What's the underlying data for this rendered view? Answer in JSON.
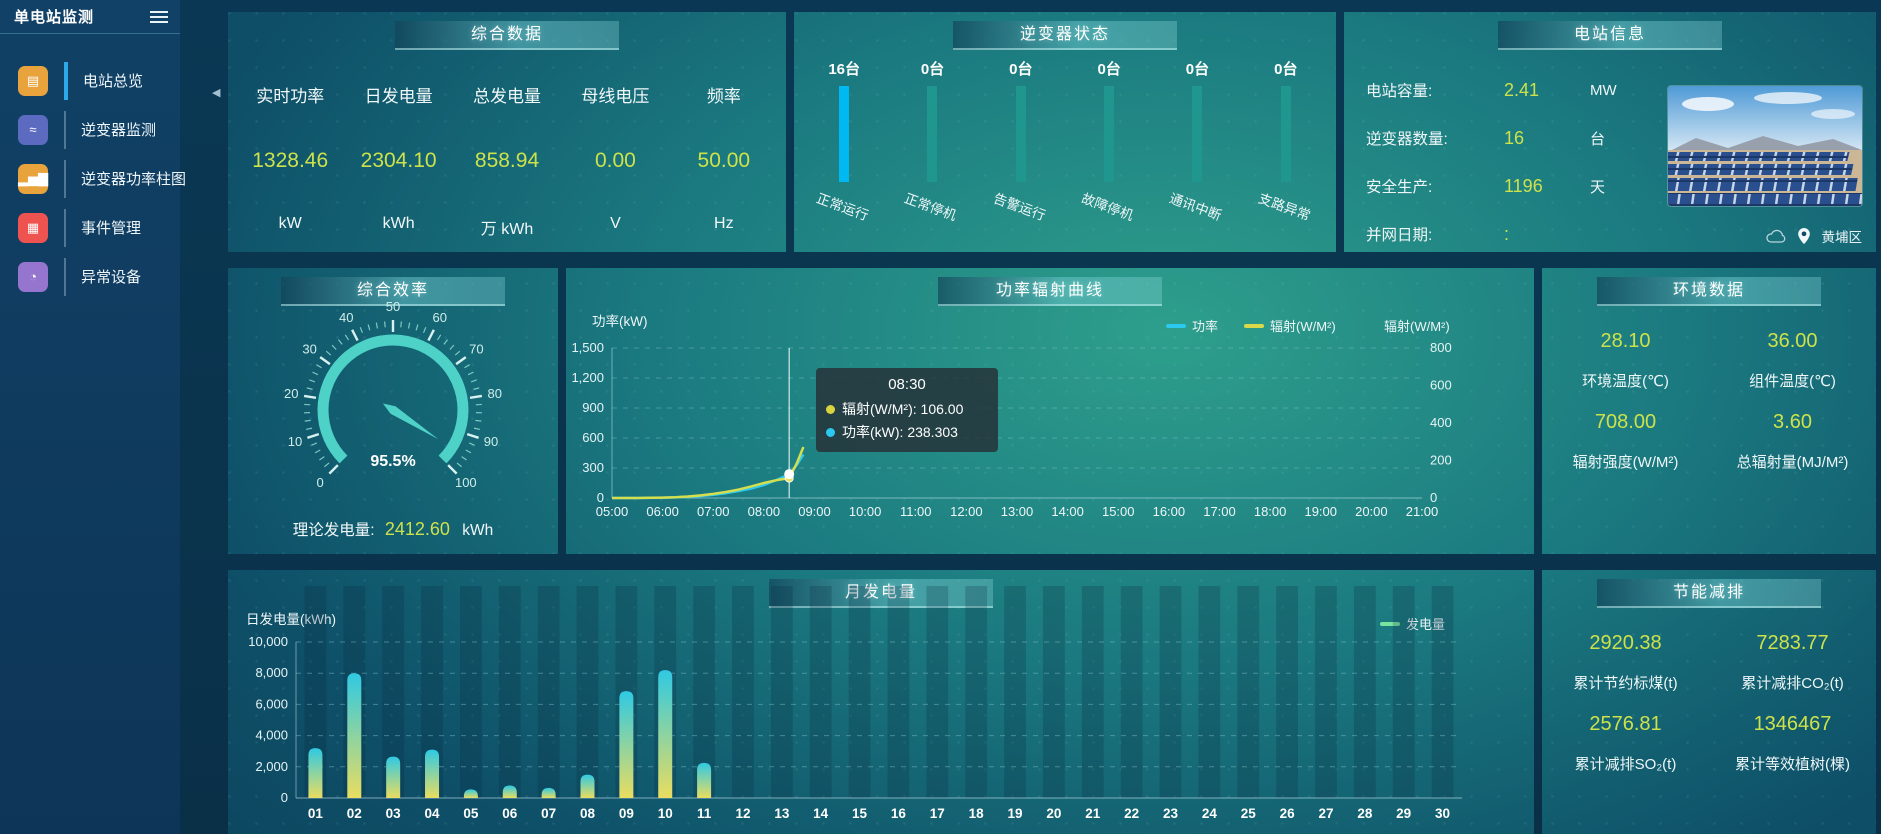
{
  "app": {
    "title": "单电站监测"
  },
  "misc": {
    "collapse_glyph": "◀"
  },
  "sidebar": {
    "items": [
      {
        "id": "station-overview",
        "label": "电站总览",
        "glyph": "▤",
        "icon_color": "#e8a33d",
        "active": true
      },
      {
        "id": "inverter-monitor",
        "label": "逆变器监测",
        "glyph": "≈",
        "icon_color": "#5c6bc0",
        "active": false
      },
      {
        "id": "inverter-power-bars",
        "label": "逆变器功率柱图",
        "glyph": "▂▅▇",
        "icon_color": "#e8a33d",
        "active": false
      },
      {
        "id": "event-management",
        "label": "事件管理",
        "glyph": "▦",
        "icon_color": "#ef5350",
        "active": false
      },
      {
        "id": "abnormal-devices",
        "label": "异常设备",
        "glyph": "◔",
        "icon_color": "#9575cd",
        "active": false
      }
    ]
  },
  "panels": {
    "summary": {
      "title": "综合数据",
      "metrics": [
        {
          "label": "实时功率",
          "value": "1328.46",
          "unit": "kW"
        },
        {
          "label": "日发电量",
          "value": "2304.10",
          "unit": "kWh"
        },
        {
          "label": "总发电量",
          "value": "858.94",
          "unit": "万 kWh"
        },
        {
          "label": "母线电压",
          "value": "0.00",
          "unit": "V"
        },
        {
          "label": "频率",
          "value": "50.00",
          "unit": "Hz"
        }
      ]
    },
    "inverter_status": {
      "title": "逆变器状态"
    },
    "station_info": {
      "title": "电站信息",
      "rows": [
        {
          "label": "电站容量:",
          "value": "2.41",
          "unit": "MW"
        },
        {
          "label": "逆变器数量:",
          "value": "16",
          "unit": "台"
        },
        {
          "label": "安全生产:",
          "value": "1196",
          "unit": "天"
        },
        {
          "label": "并网日期:",
          "value": ":",
          "unit": ""
        }
      ],
      "location": "黄埔区"
    },
    "efficiency": {
      "title": "综合效率",
      "theory_label": "理论发电量:",
      "theory_value": "2412.60",
      "theory_unit": "kWh"
    },
    "power_curve": {
      "title": "功率辐射曲线",
      "left_axis_name": "功率(kW)",
      "right_axis_name": "辐射(W/M²)",
      "legend_power": "功率",
      "legend_radiation": "辐射(W/M²)",
      "tooltip": {
        "time": "08:30",
        "radiation": "辐射(W/M²): 106.00",
        "power": "功率(kW): 238.303"
      }
    },
    "environment": {
      "title": "环境数据",
      "cells": [
        {
          "value": "28.10",
          "label": "环境温度(℃)"
        },
        {
          "value": "36.00",
          "label": "组件温度(℃)"
        },
        {
          "value": "708.00",
          "label": "辐射强度(W/M²)"
        },
        {
          "value": "3.60",
          "label": "总辐射量(MJ/M²)"
        }
      ]
    },
    "monthly": {
      "title": "月发电量",
      "axis_name": "日发电量(kWh)",
      "legend": "发电量"
    },
    "saving": {
      "title": "节能减排",
      "cells": [
        {
          "value": "2920.38",
          "label": "累计节约标煤(t)"
        },
        {
          "value": "7283.77",
          "label": "累计减排CO₂(t)"
        },
        {
          "value": "2576.81",
          "label": "累计减排SO₂(t)"
        },
        {
          "value": "1346467",
          "label": "累计等效植树(棵)"
        }
      ]
    }
  },
  "colors": {
    "accent_yellow": "#cde24a",
    "line_power": "#2cc8f0",
    "line_radiation": "#d5de4d",
    "gauge": "#4ed2c7",
    "bar_bottom": "#e9dd60",
    "bar_top": "#2fc9e3",
    "legend_generation": "#7be3a0"
  },
  "chart_data": [
    {
      "id": "power_radiation_curve",
      "type": "line",
      "title": "功率辐射曲线",
      "x_ticks": [
        "05:00",
        "06:00",
        "07:00",
        "08:00",
        "09:00",
        "10:00",
        "11:00",
        "12:00",
        "13:00",
        "14:00",
        "15:00",
        "16:00",
        "17:00",
        "18:00",
        "19:00",
        "20:00",
        "21:00"
      ],
      "x_range": [
        5,
        21
      ],
      "left_axis": {
        "label": "功率(kW)",
        "min": 0,
        "max": 1500,
        "ticks": [
          "1,500",
          "1,200",
          "900",
          "600",
          "300",
          "0"
        ]
      },
      "right_axis": {
        "label": "辐射(W/M²)",
        "min": 0,
        "max": 800,
        "ticks": [
          "800",
          "600",
          "400",
          "200",
          "0"
        ]
      },
      "series": [
        {
          "name": "功率",
          "color": "#2cc8f0",
          "axis": "left",
          "points": [
            [
              5,
              0
            ],
            [
              5.25,
              0
            ],
            [
              5.5,
              0
            ],
            [
              5.75,
              1
            ],
            [
              6,
              3
            ],
            [
              6.25,
              6
            ],
            [
              6.5,
              12
            ],
            [
              6.75,
              20
            ],
            [
              7,
              32
            ],
            [
              7.25,
              48
            ],
            [
              7.5,
              70
            ],
            [
              7.75,
              95
            ],
            [
              8,
              130
            ],
            [
              8.25,
              180
            ],
            [
              8.5,
              238.303
            ],
            [
              8.65,
              330
            ],
            [
              8.78,
              435
            ]
          ]
        },
        {
          "name": "辐射(W/M²)",
          "color": "#d5de4d",
          "axis": "right",
          "points": [
            [
              5,
              0
            ],
            [
              5.25,
              0
            ],
            [
              5.5,
              0
            ],
            [
              5.75,
              1
            ],
            [
              6,
              2
            ],
            [
              6.25,
              4
            ],
            [
              6.5,
              8
            ],
            [
              6.75,
              14
            ],
            [
              7,
              22
            ],
            [
              7.25,
              32
            ],
            [
              7.5,
              45
            ],
            [
              7.75,
              62
            ],
            [
              8,
              80
            ],
            [
              8.25,
              95
            ],
            [
              8.5,
              106
            ],
            [
              8.65,
              185
            ],
            [
              8.78,
              272
            ]
          ]
        }
      ],
      "pointer": {
        "x": 8.5,
        "power": 238.303,
        "radiation": 106
      },
      "legend": [
        "功率",
        "辐射(W/M²)"
      ],
      "legend_position": "top-right",
      "grid": true
    },
    {
      "id": "monthly_generation",
      "type": "bar",
      "title": "月发电量",
      "ylabel": "日发电量(kWh)",
      "ylim": [
        0,
        10000
      ],
      "y_ticks": [
        "10,000",
        "8,000",
        "6,000",
        "4,000",
        "2,000",
        "0"
      ],
      "categories": [
        "01",
        "02",
        "03",
        "04",
        "05",
        "06",
        "07",
        "08",
        "09",
        "10",
        "11",
        "12",
        "13",
        "14",
        "15",
        "16",
        "17",
        "18",
        "19",
        "20",
        "21",
        "22",
        "23",
        "24",
        "25",
        "26",
        "27",
        "28",
        "29",
        "30"
      ],
      "values": [
        3200,
        8000,
        2650,
        3100,
        550,
        800,
        650,
        1500,
        6850,
        8200,
        2250,
        0,
        0,
        0,
        0,
        0,
        0,
        0,
        0,
        0,
        0,
        0,
        0,
        0,
        0,
        0,
        0,
        0,
        0,
        0
      ],
      "legend": [
        "发电量"
      ],
      "grid": true
    },
    {
      "id": "efficiency_gauge",
      "type": "gauge",
      "min": 0,
      "max": 100,
      "value": 95.5,
      "display": "95.5%",
      "tick_labels": [
        "0",
        "10",
        "20",
        "30",
        "40",
        "50",
        "60",
        "70",
        "80",
        "90",
        "100"
      ],
      "color": "#4ed2c7"
    },
    {
      "id": "inverter_status",
      "type": "bar",
      "categories": [
        "正常运行",
        "正常停机",
        "告警运行",
        "故障停机",
        "通讯中断",
        "支路异常"
      ],
      "values": [
        16,
        0,
        0,
        0,
        0,
        0
      ],
      "value_labels": [
        "16台",
        "0台",
        "0台",
        "0台",
        "0台",
        "0台"
      ],
      "colors": [
        "#00b9f2",
        "#1f968e",
        "#1f968e",
        "#1f968e",
        "#1f968e",
        "#1f968e"
      ]
    }
  ]
}
